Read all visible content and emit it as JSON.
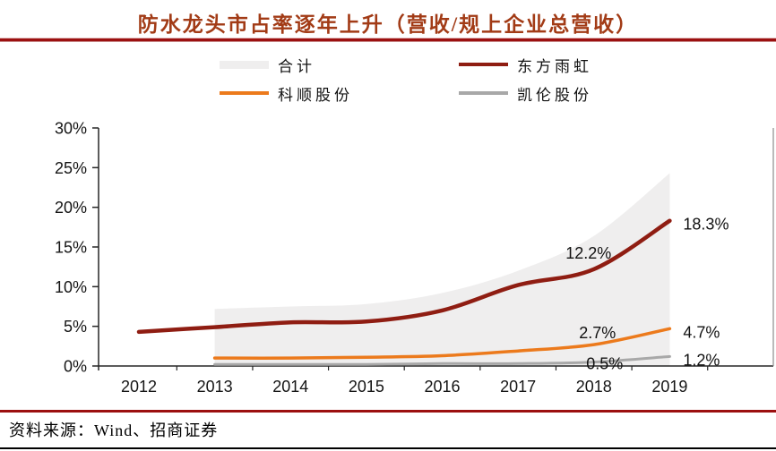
{
  "header": {
    "title": "防水龙头市占率逐年上升（营收/规上企业总营收）"
  },
  "footer": {
    "source": "资料来源：Wind、招商证券"
  },
  "colors": {
    "title_text": "#A23B16",
    "header_rule": "#9C1010",
    "footer_rule": "#9C1010",
    "bottom_rule": "#000000",
    "axis": "#262626",
    "plot_border": "#8C8C8C",
    "label_text": "#111111",
    "total": "#EFEEEE",
    "yuhong": "#8F1D12",
    "keshun": "#EC7A1C",
    "canlon": "#A8A8A8"
  },
  "chart_data": {
    "type": "line",
    "title": "防水龙头市占率逐年上升（营收/规上企业总营收）",
    "xlabel": "",
    "ylabel": "",
    "x": [
      2012,
      2013,
      2014,
      2015,
      2016,
      2017,
      2018,
      2019
    ],
    "ylim": [
      0,
      30
    ],
    "ytick_step": 5,
    "ytick_suffix": "%",
    "grid": false,
    "legend_position": "top",
    "series": [
      {
        "name": "合计",
        "key": "total",
        "kind": "area",
        "color_key": "total",
        "values": [
          null,
          7.2,
          7.5,
          7.8,
          9.2,
          12.0,
          16.4,
          24.3
        ]
      },
      {
        "name": "东方雨虹",
        "key": "yuhong",
        "kind": "line",
        "color_key": "yuhong",
        "values": [
          4.3,
          4.9,
          5.5,
          5.6,
          7.0,
          10.2,
          12.2,
          18.3
        ]
      },
      {
        "name": "科顺股份",
        "key": "keshun",
        "kind": "line",
        "color_key": "keshun",
        "values": [
          null,
          1.0,
          1.0,
          1.1,
          1.3,
          1.9,
          2.7,
          4.7
        ]
      },
      {
        "name": "凯伦股份",
        "key": "canlon",
        "kind": "line",
        "color_key": "canlon",
        "values": [
          null,
          0.2,
          0.2,
          0.2,
          0.3,
          0.3,
          0.5,
          1.2
        ]
      }
    ],
    "annotations": [
      {
        "series": "东方雨虹",
        "year": 2018,
        "text": "12.2%",
        "placement": "above-left"
      },
      {
        "series": "东方雨虹",
        "year": 2019,
        "text": "18.3%",
        "placement": "right"
      },
      {
        "series": "科顺股份",
        "year": 2018,
        "text": "2.7%",
        "placement": "above"
      },
      {
        "series": "科顺股份",
        "year": 2019,
        "text": "4.7%",
        "placement": "right"
      },
      {
        "series": "凯伦股份",
        "year": 2018,
        "text": "0.5%",
        "placement": "below-right"
      },
      {
        "series": "凯伦股份",
        "year": 2019,
        "text": "1.2%",
        "placement": "right"
      }
    ]
  }
}
